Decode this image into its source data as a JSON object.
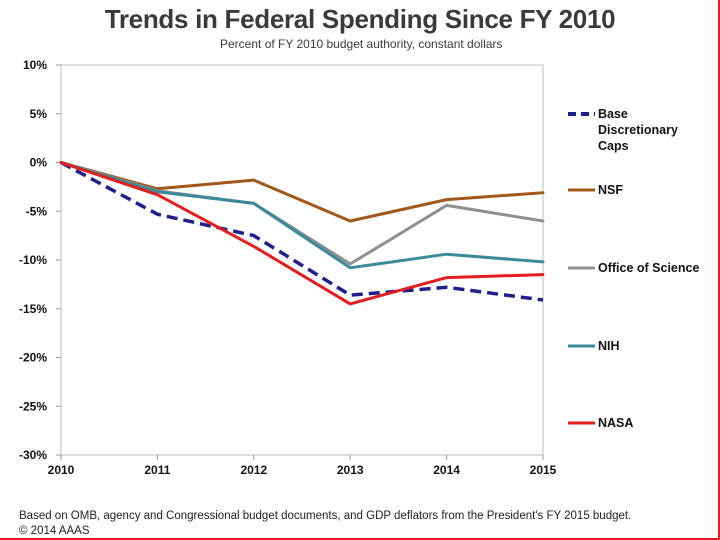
{
  "header": {
    "title": "Trends in Federal Spending Since FY 2010",
    "subtitle": "Percent of FY 2010 budget authority, constant dollars"
  },
  "footer": {
    "source": "Based on OMB, agency and Congressional budget documents, and GDP deflators from the President's FY 2015 budget.",
    "copyright": "© 2014 AAAS"
  },
  "chart_data": {
    "type": "line",
    "title": "Trends in Federal Spending Since FY 2010",
    "subtitle": "Percent of FY 2010 budget authority, constant dollars",
    "x": [
      2010,
      2011,
      2012,
      2013,
      2014,
      2015
    ],
    "x_tick_labels": [
      "2010",
      "2011",
      "2012",
      "2013",
      "2014",
      "2015"
    ],
    "ylim": [
      -30,
      10
    ],
    "y_ticks": [
      10,
      5,
      0,
      -5,
      -10,
      -15,
      -20,
      -25,
      -30
    ],
    "y_tick_labels": [
      "10%",
      "5%",
      "0%",
      "-5%",
      "-10%",
      "-15%",
      "-20%",
      "-25%",
      "-30%"
    ],
    "grid": false,
    "legend_position": "right",
    "series": [
      {
        "name": "Base Discretionary Caps",
        "legend_lines": [
          "Base",
          "Discretionary",
          "Caps"
        ],
        "color": "#1f1f8c",
        "dashed": true,
        "values": [
          0,
          -5.3,
          -7.5,
          -13.6,
          -12.8,
          -14.1
        ]
      },
      {
        "name": "NSF",
        "legend_lines": [
          "NSF"
        ],
        "color": "#a0581b",
        "dashed": false,
        "values": [
          0,
          -2.7,
          -1.8,
          -6.0,
          -3.8,
          -3.1
        ]
      },
      {
        "name": "Office of Science",
        "legend_lines": [
          "Office of Science"
        ],
        "color": "#8f8f8f",
        "dashed": false,
        "values": [
          0,
          -2.9,
          -4.2,
          -10.4,
          -4.4,
          -6.0
        ]
      },
      {
        "name": "NIH",
        "legend_lines": [
          "NIH"
        ],
        "color": "#3b8a9a",
        "dashed": false,
        "values": [
          0,
          -3.0,
          -4.2,
          -10.8,
          -9.4,
          -10.2
        ]
      },
      {
        "name": "NASA",
        "legend_lines": [
          "NASA"
        ],
        "color": "#e41e1e",
        "dashed": false,
        "values": [
          0,
          -3.3,
          -8.6,
          -14.5,
          -11.8,
          -11.5
        ]
      }
    ]
  }
}
